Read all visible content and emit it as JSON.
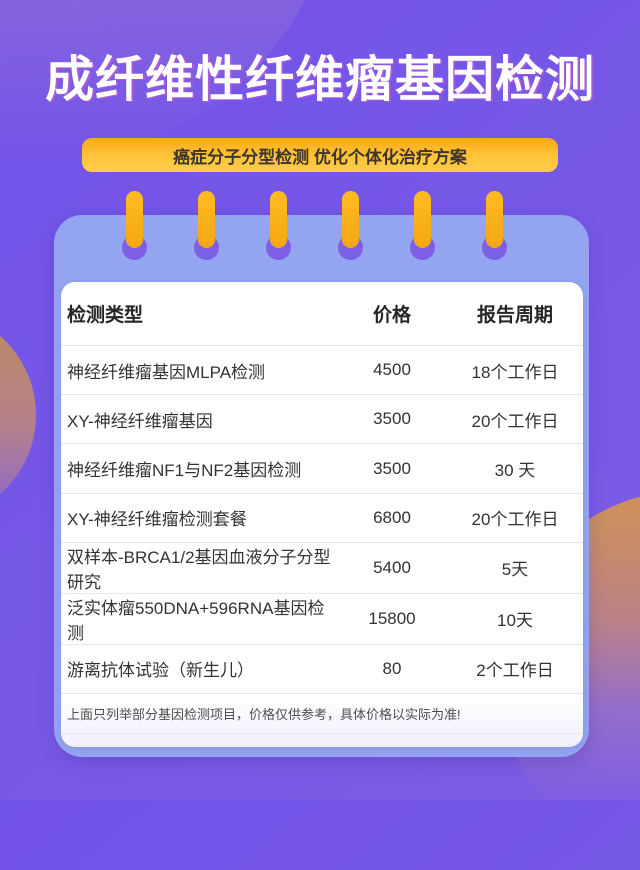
{
  "page": {
    "title": "成纤维性纤维瘤基因检测",
    "banner_label": "癌症分子分型检测 优化个体化治疗方案"
  },
  "table": {
    "headers": [
      "检测类型",
      "价格",
      "报告周期"
    ],
    "rows": [
      {
        "name": "神经纤维瘤基因MLPA检测",
        "price": "4500",
        "period": "18个工作日"
      },
      {
        "name": "XY-神经纤维瘤基因",
        "price": "3500",
        "period": "20个工作日"
      },
      {
        "name": "神经纤维瘤NF1与NF2基因检测",
        "price": "3500",
        "period": "30 天"
      },
      {
        "name": "XY-神经纤维瘤检测套餐",
        "price": "6800",
        "period": "20个工作日"
      },
      {
        "name": "双样本-BRCA1/2基因血液分子分型研究",
        "price": "5400",
        "period": "5天"
      },
      {
        "name": "泛实体瘤550DNA+596RNA基因检测",
        "price": "15800",
        "period": "10天"
      },
      {
        "name": "游离抗体试验（新生儿）",
        "price": "80",
        "period": "2个工作日"
      }
    ],
    "footnote": "上面只列举部分基因检测项目，价格仅供参考，具体价格以实际为准!"
  },
  "colors": {
    "background_purple": "#7658e7",
    "notebook_blue": "#93a4f0",
    "ring_hole_purple": "#7d5fe6",
    "peg_orange": "#f9ad18",
    "banner_yellow": "#ffc43a",
    "banner_text": "#3e352c",
    "title_text": "#ffffff",
    "row_text": "#333333",
    "divider": "#e7e7e7",
    "decor_circle_orange": "#c9905e"
  }
}
